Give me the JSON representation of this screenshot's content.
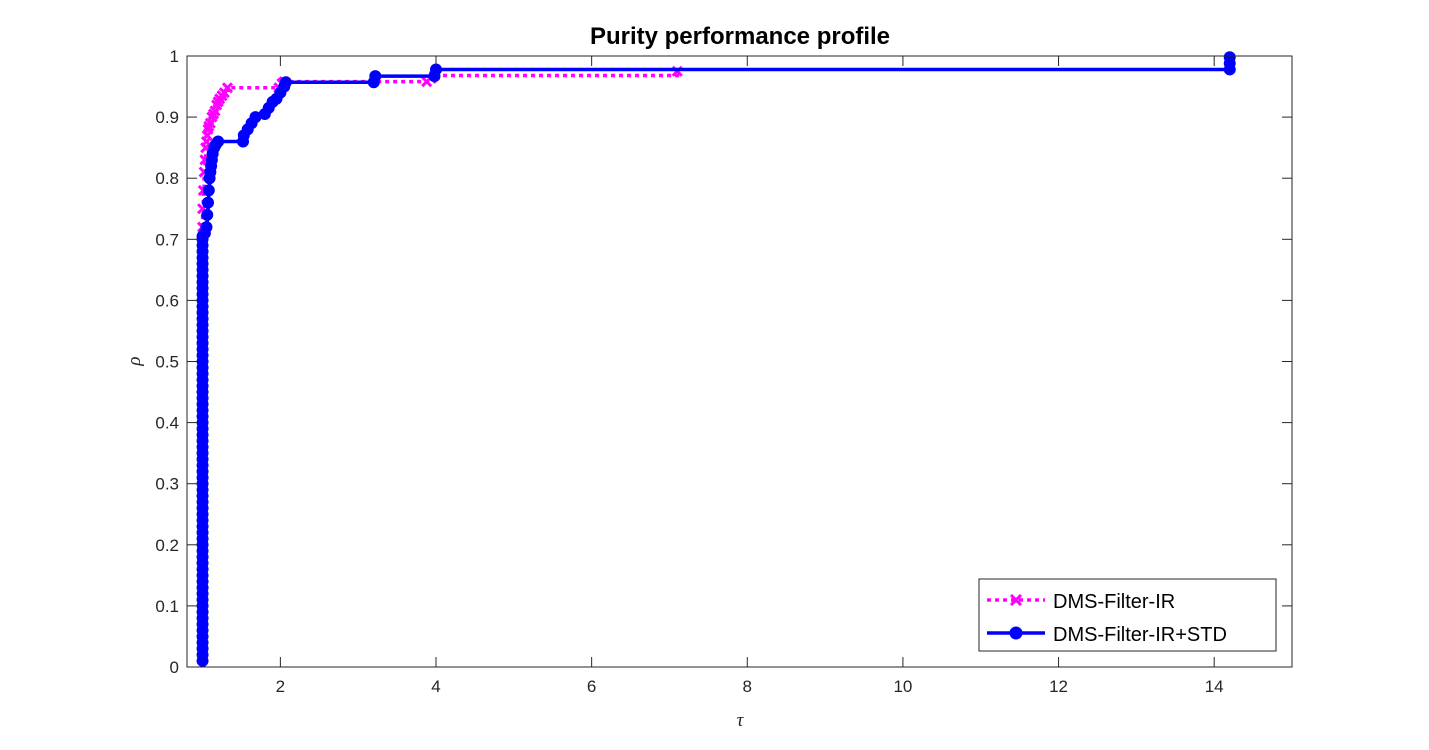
{
  "chart_data": {
    "type": "line",
    "title": "Purity performance profile",
    "xlabel": "τ",
    "ylabel": "ρ",
    "xlim": [
      0.8,
      15
    ],
    "ylim": [
      0,
      1
    ],
    "x_ticks": [
      2,
      4,
      6,
      8,
      10,
      12,
      14
    ],
    "y_ticks": [
      0,
      0.1,
      0.2,
      0.3,
      0.4,
      0.5,
      0.6,
      0.7,
      0.8,
      0.9,
      1
    ],
    "x_tick_labels": [
      "2",
      "4",
      "6",
      "8",
      "10",
      "12",
      "14"
    ],
    "y_tick_labels": [
      "0",
      "0.1",
      "0.2",
      "0.3",
      "0.4",
      "0.5",
      "0.6",
      "0.7",
      "0.8",
      "0.9",
      "1"
    ],
    "grid": false,
    "legend_position": "bottom-right",
    "series": [
      {
        "name": "DMS-Filter-IR",
        "color": "#ff00ff",
        "line_style": "dotted",
        "marker": "x",
        "x": [
          1.0,
          1.0,
          1.01,
          1.02,
          1.03,
          1.04,
          1.05,
          1.06,
          1.07,
          1.08,
          1.1,
          1.12,
          1.14,
          1.16,
          1.18,
          1.2,
          1.22,
          1.25,
          1.28,
          1.32,
          1.98,
          2.02,
          2.05,
          3.88,
          3.98,
          7.1
        ],
        "y": [
          0.72,
          0.75,
          0.78,
          0.81,
          0.83,
          0.85,
          0.86,
          0.87,
          0.88,
          0.885,
          0.89,
          0.9,
          0.905,
          0.91,
          0.92,
          0.925,
          0.93,
          0.935,
          0.94,
          0.948,
          0.948,
          0.955,
          0.958,
          0.958,
          0.968,
          0.975
        ]
      },
      {
        "name": "DMS-Filter-IR+STD",
        "color": "#0000ff",
        "line_style": "solid",
        "marker": "o",
        "x": [
          1.0,
          1.0,
          1.0,
          1.0,
          1.0,
          1.0,
          1.0,
          1.0,
          1.0,
          1.0,
          1.0,
          1.0,
          1.0,
          1.0,
          1.0,
          1.0,
          1.0,
          1.0,
          1.0,
          1.0,
          1.0,
          1.0,
          1.0,
          1.0,
          1.0,
          1.0,
          1.0,
          1.0,
          1.0,
          1.0,
          1.0,
          1.0,
          1.0,
          1.0,
          1.0,
          1.0,
          1.0,
          1.0,
          1.0,
          1.0,
          1.0,
          1.0,
          1.0,
          1.0,
          1.0,
          1.0,
          1.0,
          1.0,
          1.0,
          1.0,
          1.0,
          1.0,
          1.0,
          1.0,
          1.0,
          1.0,
          1.0,
          1.0,
          1.0,
          1.0,
          1.0,
          1.0,
          1.0,
          1.0,
          1.0,
          1.0,
          1.0,
          1.0,
          1.0,
          1.0,
          1.0,
          1.03,
          1.05,
          1.06,
          1.07,
          1.08,
          1.09,
          1.1,
          1.11,
          1.12,
          1.13,
          1.15,
          1.17,
          1.2,
          1.52,
          1.53,
          1.58,
          1.63,
          1.68,
          1.8,
          1.85,
          1.9,
          1.95,
          2.0,
          2.05,
          2.07,
          3.2,
          3.22,
          3.98,
          4.0,
          14.2,
          14.2,
          14.2
        ],
        "y": [
          0.01,
          0.02,
          0.03,
          0.04,
          0.05,
          0.06,
          0.07,
          0.08,
          0.09,
          0.1,
          0.11,
          0.12,
          0.13,
          0.14,
          0.15,
          0.16,
          0.17,
          0.18,
          0.19,
          0.2,
          0.21,
          0.22,
          0.23,
          0.24,
          0.25,
          0.26,
          0.27,
          0.28,
          0.29,
          0.3,
          0.31,
          0.32,
          0.33,
          0.34,
          0.35,
          0.36,
          0.37,
          0.38,
          0.39,
          0.4,
          0.41,
          0.42,
          0.43,
          0.44,
          0.45,
          0.46,
          0.47,
          0.48,
          0.49,
          0.5,
          0.51,
          0.52,
          0.53,
          0.54,
          0.55,
          0.56,
          0.57,
          0.58,
          0.59,
          0.6,
          0.61,
          0.62,
          0.63,
          0.64,
          0.65,
          0.66,
          0.67,
          0.68,
          0.69,
          0.7,
          0.705,
          0.71,
          0.72,
          0.74,
          0.76,
          0.78,
          0.8,
          0.81,
          0.82,
          0.83,
          0.84,
          0.85,
          0.855,
          0.86,
          0.86,
          0.87,
          0.88,
          0.89,
          0.9,
          0.905,
          0.915,
          0.925,
          0.93,
          0.94,
          0.95,
          0.957,
          0.957,
          0.967,
          0.967,
          0.978,
          0.978,
          0.988,
          0.998
        ]
      }
    ]
  }
}
